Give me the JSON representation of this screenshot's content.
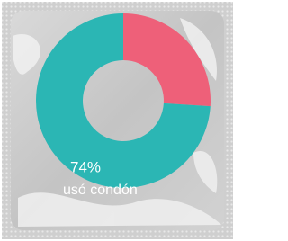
{
  "chart_data": {
    "type": "pie",
    "donut": true,
    "categories": [
      "usó condón",
      null
    ],
    "values": [
      74,
      26
    ],
    "value_labels": [
      "74%",
      null
    ],
    "colors": [
      "#2bb6b4",
      "#ee6079"
    ]
  }
}
